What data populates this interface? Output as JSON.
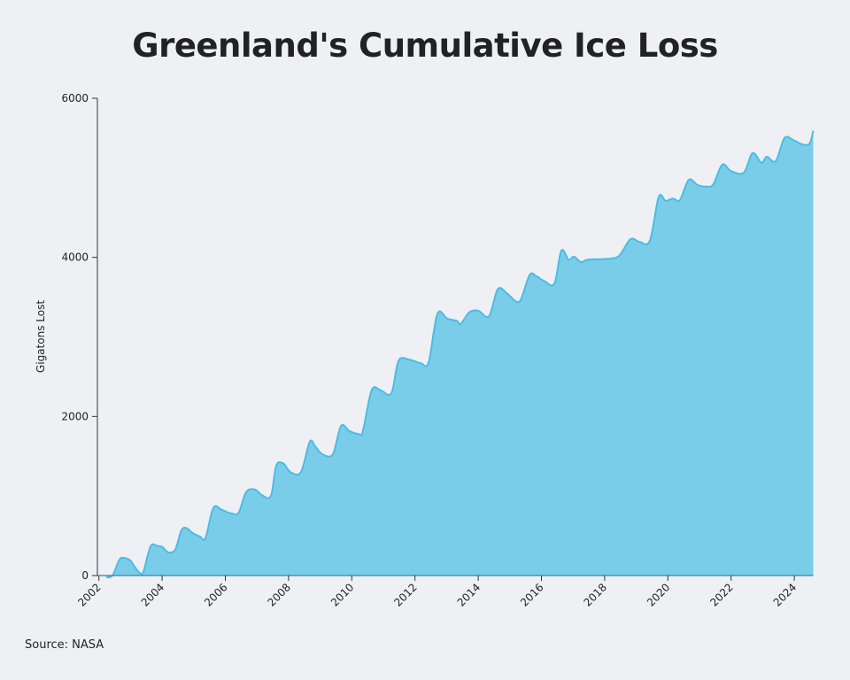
{
  "chart_data": {
    "type": "area",
    "title": "Greenland's Cumulative Ice Loss",
    "xlabel": "",
    "ylabel": "Gigatons Lost",
    "source": "Source: NASA",
    "xlim": [
      2002,
      2024.6
    ],
    "ylim": [
      0,
      6000
    ],
    "xticks": [
      2002,
      2004,
      2006,
      2008,
      2010,
      2012,
      2014,
      2016,
      2018,
      2020,
      2022,
      2024
    ],
    "yticks": [
      0,
      2000,
      4000,
      6000
    ],
    "grid": false,
    "colors": {
      "fill": "#7acde9",
      "line": "#4dbbe3",
      "axis": "#333333"
    },
    "series": [
      {
        "name": "Gigatons Lost",
        "x": [
          2002.23,
          2002.43,
          2002.65,
          2002.8,
          2002.99,
          2003.13,
          2003.3,
          2003.41,
          2003.64,
          2003.86,
          2004.0,
          2004.2,
          2004.42,
          2004.6,
          2004.75,
          2004.98,
          2005.2,
          2005.37,
          2005.62,
          2005.87,
          2006.04,
          2006.2,
          2006.42,
          2006.66,
          2006.94,
          2007.16,
          2007.44,
          2007.61,
          2007.83,
          2008.06,
          2008.39,
          2008.67,
          2008.84,
          2009.07,
          2009.4,
          2009.66,
          2009.93,
          2010.21,
          2010.35,
          2010.63,
          2010.91,
          2011.25,
          2011.48,
          2011.81,
          2012.18,
          2012.43,
          2012.71,
          2013.02,
          2013.33,
          2013.44,
          2013.72,
          2014.0,
          2014.34,
          2014.62,
          2014.9,
          2015.18,
          2015.35,
          2015.63,
          2015.85,
          2016.1,
          2016.41,
          2016.63,
          2016.86,
          2017.03,
          2017.25,
          2017.47,
          2018.2,
          2018.48,
          2018.82,
          2019.1,
          2019.43,
          2019.71,
          2019.93,
          2020.16,
          2020.38,
          2020.66,
          2020.94,
          2021.22,
          2021.44,
          2021.72,
          2022.0,
          2022.4,
          2022.68,
          2022.96,
          2023.13,
          2023.41,
          2023.69,
          2023.97,
          2024.25,
          2024.48,
          2024.6
        ],
        "values": [
          -20,
          0,
          200,
          220,
          190,
          110,
          30,
          50,
          370,
          370,
          360,
          290,
          330,
          560,
          600,
          530,
          490,
          470,
          850,
          830,
          800,
          780,
          790,
          1050,
          1080,
          1010,
          1000,
          1380,
          1410,
          1300,
          1300,
          1680,
          1625,
          1525,
          1525,
          1880,
          1815,
          1780,
          1815,
          2330,
          2330,
          2290,
          2700,
          2715,
          2670,
          2680,
          3290,
          3230,
          3200,
          3160,
          3310,
          3330,
          3260,
          3600,
          3550,
          3450,
          3470,
          3780,
          3760,
          3700,
          3670,
          4085,
          3970,
          4010,
          3940,
          3970,
          3985,
          4030,
          4230,
          4195,
          4210,
          4760,
          4710,
          4740,
          4720,
          4975,
          4910,
          4890,
          4920,
          5165,
          5085,
          5065,
          5310,
          5190,
          5265,
          5210,
          5500,
          5475,
          5420,
          5430,
          5590
        ]
      }
    ]
  }
}
